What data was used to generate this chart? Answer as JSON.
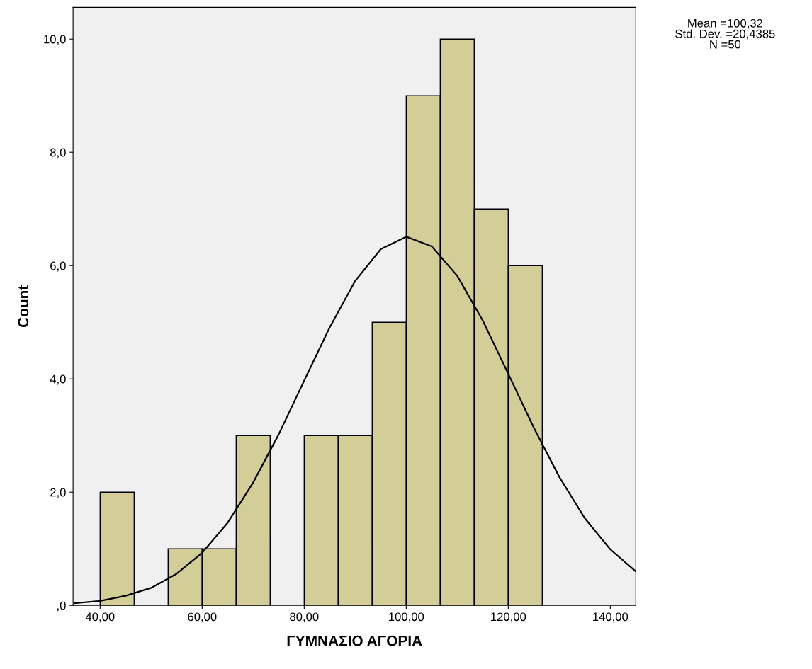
{
  "chart_data": {
    "type": "histogram",
    "xlabel": "ΓΥΜΝΑΣΙΟ ΑΓΟΡΙΑ",
    "ylabel": "Count",
    "series": [
      {
        "color": "#d3ce98",
        "bins": [
          40,
          46.67,
          53.33,
          60,
          66.67,
          73.33,
          80,
          86.67,
          93.33,
          100,
          106.67,
          113.33,
          120,
          126.67
        ],
        "values": [
          2,
          0,
          1,
          1,
          3,
          0,
          3,
          3,
          5,
          9,
          10,
          7,
          6
        ]
      },
      {
        "type": "line",
        "color": "#000000",
        "x": [
          35,
          40,
          45,
          50,
          55,
          60,
          65,
          70,
          75,
          80,
          85,
          90,
          95,
          100,
          105,
          110,
          115,
          120,
          125,
          130,
          135,
          140,
          145
        ],
        "values": [
          0.04,
          0.08,
          0.17,
          0.31,
          0.56,
          0.93,
          1.46,
          2.17,
          3.02,
          3.97,
          4.91,
          5.73,
          6.29,
          6.51,
          6.34,
          5.82,
          5.03,
          4.09,
          3.14,
          2.27,
          1.54,
          0.99,
          0.6
        ]
      }
    ],
    "xlim": [
      34.7,
      145
    ],
    "xticks": [
      {
        "value": 40,
        "label": "40,00"
      },
      {
        "value": 60,
        "label": "60,00"
      },
      {
        "value": 80,
        "label": "80,00"
      },
      {
        "value": 100,
        "label": "100,00"
      },
      {
        "value": 120,
        "label": "120,00"
      },
      {
        "value": 140,
        "label": "140,00"
      }
    ],
    "ylim": [
      0,
      10.56
    ],
    "yticks": [
      {
        "value": 0,
        "label": ",0"
      },
      {
        "value": 2,
        "label": "2,0"
      },
      {
        "value": 4,
        "label": "4,0"
      },
      {
        "value": 6,
        "label": "6,0"
      },
      {
        "value": 8,
        "label": "8,0"
      },
      {
        "value": 10,
        "label": "10,0"
      }
    ],
    "grid": false,
    "annotations": [
      "Mean =100,32",
      "Std. Dev. =20,4385",
      "N =50"
    ]
  }
}
